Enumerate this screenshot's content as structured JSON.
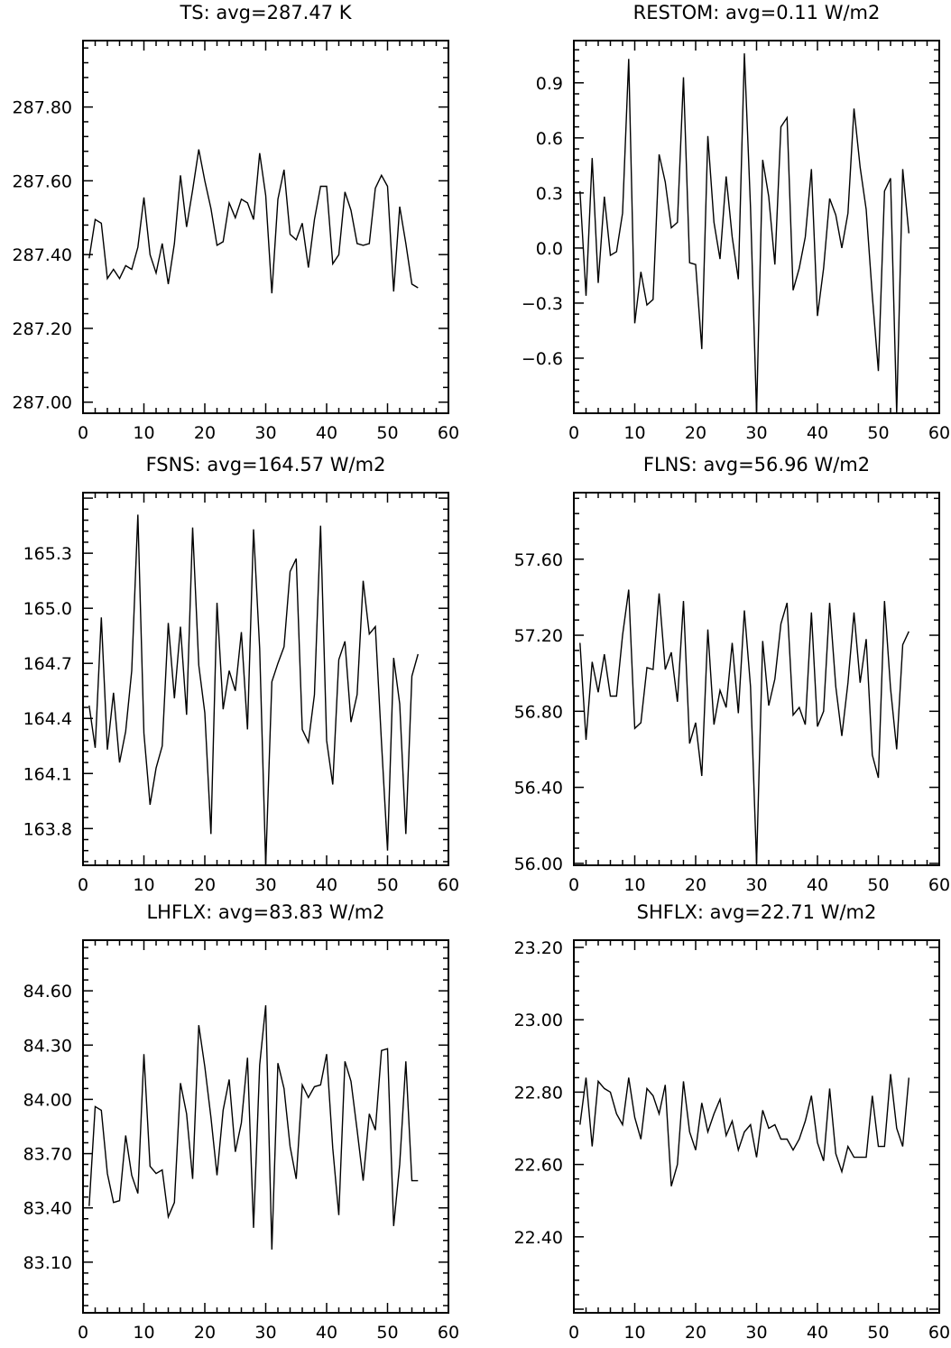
{
  "chart_data": [
    {
      "type": "line",
      "title": "TS: avg=287.47 K",
      "xlabel": "",
      "ylabel": "",
      "xlim": [
        0,
        60
      ],
      "ylim": [
        286.97,
        287.98
      ],
      "xticks": [
        0,
        10,
        20,
        30,
        40,
        50,
        60
      ],
      "xtick_labels": [
        "0",
        "10",
        "20",
        "30",
        "40",
        "50",
        "60"
      ],
      "yticks": [
        287.0,
        287.2,
        287.4,
        287.6,
        287.8
      ],
      "ytick_labels": [
        "287.00",
        "287.20",
        "287.40",
        "287.60",
        "287.80"
      ],
      "grid": false,
      "x": [
        1,
        2,
        3,
        4,
        5,
        6,
        7,
        8,
        9,
        10,
        11,
        12,
        13,
        14,
        15,
        16,
        17,
        18,
        19,
        20,
        21,
        22,
        23,
        24,
        25,
        26,
        27,
        28,
        29,
        30,
        31,
        32,
        33,
        34,
        35,
        36,
        37,
        38,
        39,
        40,
        41,
        42,
        43,
        44,
        45,
        46,
        47,
        48,
        49,
        50,
        51,
        52,
        53,
        54,
        55
      ],
      "values": [
        287.39,
        287.495,
        287.485,
        287.335,
        287.36,
        287.335,
        287.37,
        287.36,
        287.42,
        287.555,
        287.4,
        287.35,
        287.43,
        287.32,
        287.43,
        287.615,
        287.475,
        287.575,
        287.685,
        287.6,
        287.525,
        287.425,
        287.435,
        287.54,
        287.5,
        287.55,
        287.54,
        287.495,
        287.675,
        287.56,
        287.295,
        287.55,
        287.63,
        287.455,
        287.44,
        287.485,
        287.365,
        287.495,
        287.585,
        287.585,
        287.375,
        287.4,
        287.57,
        287.52,
        287.43,
        287.425,
        287.43,
        287.58,
        287.615,
        287.585,
        287.3,
        287.53,
        287.43,
        287.32,
        287.31
      ]
    },
    {
      "type": "line",
      "title": "RESTOM: avg=0.11 W/m2",
      "xlabel": "",
      "ylabel": "",
      "xlim": [
        0,
        60
      ],
      "ylim": [
        -0.9,
        1.13
      ],
      "xticks": [
        0,
        10,
        20,
        30,
        40,
        50,
        60
      ],
      "xtick_labels": [
        "0",
        "10",
        "20",
        "30",
        "40",
        "50",
        "60"
      ],
      "yticks": [
        -0.6,
        -0.3,
        0.0,
        0.3,
        0.6,
        0.9
      ],
      "ytick_labels": [
        "−0.6",
        "−0.3",
        "0.0",
        "0.3",
        "0.6",
        "0.9"
      ],
      "grid": false,
      "x": [
        1,
        2,
        3,
        4,
        5,
        6,
        7,
        8,
        9,
        10,
        11,
        12,
        13,
        14,
        15,
        16,
        17,
        18,
        19,
        20,
        21,
        22,
        23,
        24,
        25,
        26,
        27,
        28,
        29,
        30,
        31,
        32,
        33,
        34,
        35,
        36,
        37,
        38,
        39,
        40,
        41,
        42,
        43,
        44,
        45,
        46,
        47,
        48,
        49,
        50,
        51,
        52,
        53,
        54,
        55
      ],
      "values": [
        0.31,
        -0.26,
        0.49,
        -0.19,
        0.28,
        -0.04,
        -0.02,
        0.19,
        1.03,
        -0.41,
        -0.13,
        -0.31,
        -0.28,
        0.51,
        0.36,
        0.11,
        0.14,
        0.93,
        -0.08,
        -0.09,
        -0.55,
        0.61,
        0.14,
        -0.06,
        0.39,
        0.06,
        -0.17,
        1.06,
        0.22,
        -0.9,
        0.48,
        0.28,
        -0.09,
        0.66,
        0.71,
        -0.23,
        -0.11,
        0.06,
        0.43,
        -0.37,
        -0.11,
        0.27,
        0.18,
        0.0,
        0.19,
        0.76,
        0.44,
        0.21,
        -0.26,
        -0.67,
        0.31,
        0.38,
        -0.9,
        0.43,
        0.08
      ]
    },
    {
      "type": "line",
      "title": "FSNS: avg=164.57 W/m2",
      "xlabel": "",
      "ylabel": "",
      "xlim": [
        0,
        60
      ],
      "ylim": [
        163.6,
        165.63
      ],
      "xticks": [
        0,
        10,
        20,
        30,
        40,
        50,
        60
      ],
      "xtick_labels": [
        "0",
        "10",
        "20",
        "30",
        "40",
        "50",
        "60"
      ],
      "yticks": [
        163.8,
        164.1,
        164.4,
        164.7,
        165.0,
        165.3
      ],
      "ytick_labels": [
        "163.8",
        "164.1",
        "164.4",
        "164.7",
        "165.0",
        "165.3"
      ],
      "grid": false,
      "x": [
        1,
        2,
        3,
        4,
        5,
        6,
        7,
        8,
        9,
        10,
        11,
        12,
        13,
        14,
        15,
        16,
        17,
        18,
        19,
        20,
        21,
        22,
        23,
        24,
        25,
        26,
        27,
        28,
        29,
        30,
        31,
        32,
        33,
        34,
        35,
        36,
        37,
        38,
        39,
        40,
        41,
        42,
        43,
        44,
        45,
        46,
        47,
        48,
        49,
        50,
        51,
        52,
        53,
        54,
        55
      ],
      "values": [
        164.47,
        164.24,
        164.95,
        164.23,
        164.54,
        164.16,
        164.33,
        164.66,
        165.51,
        164.32,
        163.93,
        164.13,
        164.25,
        164.92,
        164.51,
        164.9,
        164.42,
        165.44,
        164.69,
        164.43,
        163.77,
        165.03,
        164.45,
        164.66,
        164.55,
        164.87,
        164.34,
        165.43,
        164.78,
        163.6,
        164.6,
        164.7,
        164.79,
        165.2,
        165.27,
        164.34,
        164.27,
        164.53,
        165.45,
        164.28,
        164.04,
        164.72,
        164.82,
        164.38,
        164.53,
        165.15,
        164.86,
        164.9,
        164.27,
        163.68,
        164.73,
        164.48,
        163.77,
        164.63,
        164.75
      ]
    },
    {
      "type": "line",
      "title": "FLNS: avg=56.96 W/m2",
      "xlabel": "",
      "ylabel": "",
      "xlim": [
        0,
        60
      ],
      "ylim": [
        55.99,
        57.95
      ],
      "xticks": [
        0,
        10,
        20,
        30,
        40,
        50,
        60
      ],
      "xtick_labels": [
        "0",
        "10",
        "20",
        "30",
        "40",
        "50",
        "60"
      ],
      "yticks": [
        56.0,
        56.4,
        56.8,
        57.2,
        57.6
      ],
      "ytick_labels": [
        "56.00",
        "56.40",
        "56.80",
        "57.20",
        "57.60"
      ],
      "grid": false,
      "x": [
        1,
        2,
        3,
        4,
        5,
        6,
        7,
        8,
        9,
        10,
        11,
        12,
        13,
        14,
        15,
        16,
        17,
        18,
        19,
        20,
        21,
        22,
        23,
        24,
        25,
        26,
        27,
        28,
        29,
        30,
        31,
        32,
        33,
        34,
        35,
        36,
        37,
        38,
        39,
        40,
        41,
        42,
        43,
        44,
        45,
        46,
        47,
        48,
        49,
        50,
        51,
        52,
        53,
        54,
        55
      ],
      "values": [
        57.16,
        56.65,
        57.06,
        56.9,
        57.1,
        56.88,
        56.88,
        57.2,
        57.44,
        56.71,
        56.74,
        57.03,
        57.02,
        57.42,
        57.02,
        57.11,
        56.85,
        57.38,
        56.63,
        56.74,
        56.46,
        57.23,
        56.73,
        56.91,
        56.82,
        57.16,
        56.79,
        57.33,
        56.93,
        56.0,
        57.17,
        56.83,
        56.97,
        57.26,
        57.37,
        56.78,
        56.82,
        56.73,
        57.32,
        56.72,
        56.8,
        57.37,
        56.93,
        56.67,
        56.95,
        57.32,
        56.95,
        57.18,
        56.57,
        56.45,
        57.38,
        56.92,
        56.6,
        57.15,
        57.22
      ]
    },
    {
      "type": "line",
      "title": "LHFLX: avg=83.83 W/m2",
      "xlabel": "",
      "ylabel": "",
      "xlim": [
        0,
        60
      ],
      "ylim": [
        82.82,
        84.88
      ],
      "xticks": [
        0,
        10,
        20,
        30,
        40,
        50,
        60
      ],
      "xtick_labels": [
        "0",
        "10",
        "20",
        "30",
        "40",
        "50",
        "60"
      ],
      "yticks": [
        83.1,
        83.4,
        83.7,
        84.0,
        84.3,
        84.6
      ],
      "ytick_labels": [
        "83.10",
        "83.40",
        "83.70",
        "84.00",
        "84.30",
        "84.60"
      ],
      "grid": false,
      "x": [
        1,
        2,
        3,
        4,
        5,
        6,
        7,
        8,
        9,
        10,
        11,
        12,
        13,
        14,
        15,
        16,
        17,
        18,
        19,
        20,
        21,
        22,
        23,
        24,
        25,
        26,
        27,
        28,
        29,
        30,
        31,
        32,
        33,
        34,
        35,
        36,
        37,
        38,
        39,
        40,
        41,
        42,
        43,
        44,
        45,
        46,
        47,
        48,
        49,
        50,
        51,
        52,
        53,
        54,
        55
      ],
      "values": [
        83.41,
        83.96,
        83.94,
        83.59,
        83.43,
        83.44,
        83.8,
        83.58,
        83.48,
        84.25,
        83.63,
        83.59,
        83.61,
        83.35,
        83.43,
        84.09,
        83.92,
        83.56,
        84.41,
        84.18,
        83.9,
        83.58,
        83.94,
        84.11,
        83.71,
        83.87,
        84.23,
        83.29,
        84.19,
        84.52,
        83.17,
        84.2,
        84.06,
        83.74,
        83.56,
        84.08,
        84.01,
        84.07,
        84.08,
        84.25,
        83.73,
        83.36,
        84.21,
        84.1,
        83.83,
        83.55,
        83.92,
        83.83,
        84.27,
        84.28,
        83.3,
        83.64,
        84.21,
        83.55,
        83.55
      ]
    },
    {
      "type": "line",
      "title": "SHFLX: avg=22.71 W/m2",
      "xlabel": "",
      "ylabel": "",
      "xlim": [
        0,
        60
      ],
      "ylim": [
        22.19,
        23.22
      ],
      "xticks": [
        0,
        10,
        20,
        30,
        40,
        50,
        60
      ],
      "xtick_labels": [
        "0",
        "10",
        "20",
        "30",
        "40",
        "50",
        "60"
      ],
      "yticks": [
        22.4,
        22.6,
        22.8,
        23.0,
        23.2
      ],
      "ytick_labels": [
        "22.40",
        "22.60",
        "22.80",
        "23.00",
        "23.20"
      ],
      "grid": false,
      "x": [
        1,
        2,
        3,
        4,
        5,
        6,
        7,
        8,
        9,
        10,
        11,
        12,
        13,
        14,
        15,
        16,
        17,
        18,
        19,
        20,
        21,
        22,
        23,
        24,
        25,
        26,
        27,
        28,
        29,
        30,
        31,
        32,
        33,
        34,
        35,
        36,
        37,
        38,
        39,
        40,
        41,
        42,
        43,
        44,
        45,
        46,
        47,
        48,
        49,
        50,
        51,
        52,
        53,
        54,
        55
      ],
      "values": [
        22.71,
        22.84,
        22.65,
        22.83,
        22.81,
        22.8,
        22.74,
        22.71,
        22.84,
        22.73,
        22.67,
        22.81,
        22.79,
        22.74,
        22.82,
        22.54,
        22.6,
        22.83,
        22.69,
        22.64,
        22.77,
        22.69,
        22.74,
        22.78,
        22.68,
        22.72,
        22.64,
        22.69,
        22.71,
        22.62,
        22.75,
        22.7,
        22.71,
        22.67,
        22.67,
        22.64,
        22.67,
        22.72,
        22.79,
        22.66,
        22.61,
        22.81,
        22.63,
        22.58,
        22.65,
        22.62,
        22.62,
        22.62,
        22.79,
        22.65,
        22.65,
        22.85,
        22.7,
        22.65,
        22.84
      ]
    }
  ]
}
